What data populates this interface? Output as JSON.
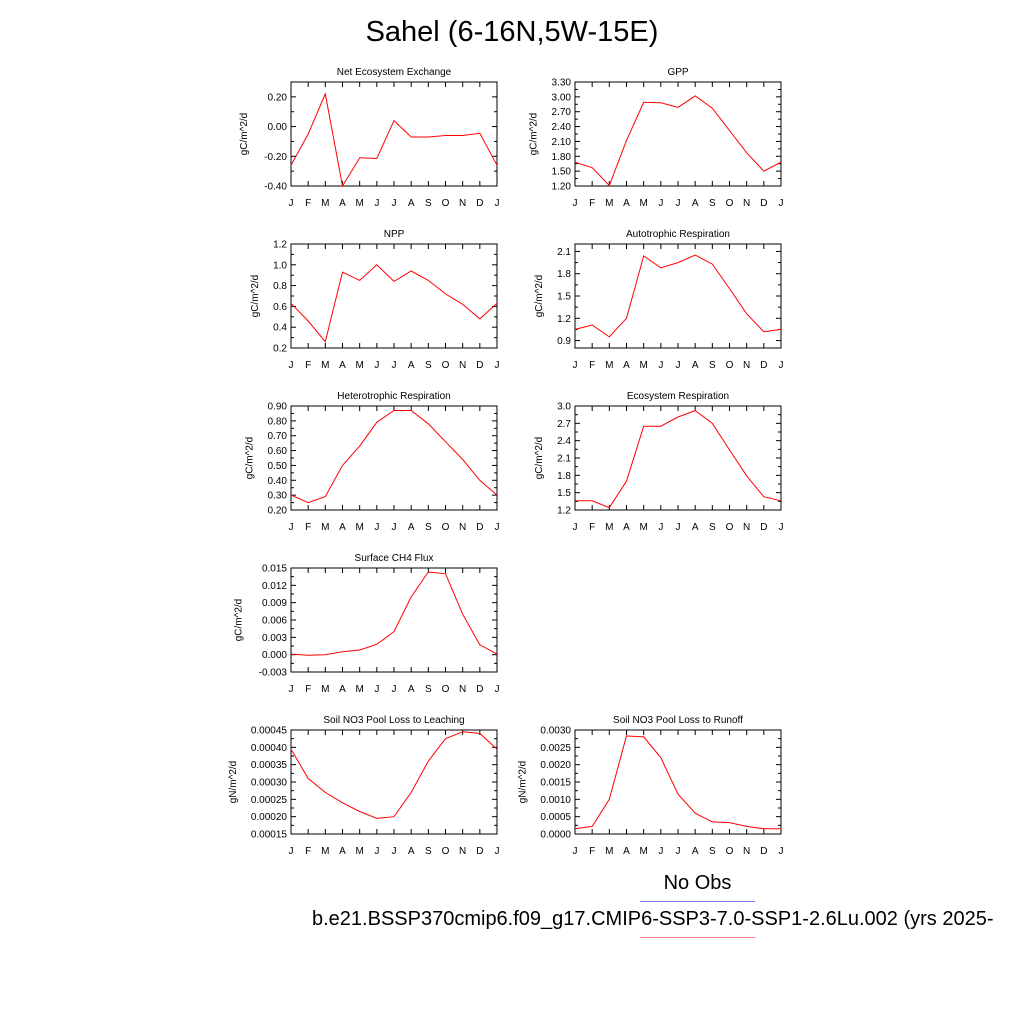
{
  "title": "Sahel (6-16N,5W-15E)",
  "legend": {
    "obs_label": "No Obs",
    "case_label": "b.e21.BSSP370cmip6.f09_g17.CMIP6-SSP3-7.0-SSP1-2.6Lu.002 (yrs 2025-",
    "obs_color": "#7f7fff",
    "case_color": "#ff7f7f"
  },
  "line_color": "#ff0000",
  "chart_data": [
    {
      "type": "line",
      "title": "Net Ecosystem Exchange",
      "ylabel": "gC/m^2/d",
      "x": [
        "J",
        "F",
        "M",
        "A",
        "M",
        "J",
        "J",
        "A",
        "S",
        "O",
        "N",
        "D",
        "J"
      ],
      "ylim": [
        -0.4,
        0.3
      ],
      "yticks": [
        -0.4,
        -0.2,
        0.0,
        0.2
      ],
      "ytick_labels": [
        "-0.40",
        "-0.20",
        "0.00",
        "0.20"
      ],
      "values": [
        -0.26,
        -0.05,
        0.22,
        -0.4,
        -0.21,
        -0.215,
        0.04,
        -0.07,
        -0.07,
        -0.06,
        -0.06,
        -0.045,
        -0.26
      ]
    },
    {
      "type": "line",
      "title": "GPP",
      "ylabel": "gC/m^2/d",
      "x": [
        "J",
        "F",
        "M",
        "A",
        "M",
        "J",
        "J",
        "A",
        "S",
        "O",
        "N",
        "D",
        "J"
      ],
      "ylim": [
        1.2,
        3.3
      ],
      "yticks": [
        1.2,
        1.5,
        1.8,
        2.1,
        2.4,
        2.7,
        3.0,
        3.3
      ],
      "ytick_labels": [
        "1.20",
        "1.50",
        "1.80",
        "2.10",
        "2.40",
        "2.70",
        "3.00",
        "3.30"
      ],
      "values": [
        1.68,
        1.57,
        1.21,
        2.12,
        2.89,
        2.88,
        2.79,
        3.02,
        2.77,
        2.32,
        1.87,
        1.5,
        1.68
      ]
    },
    {
      "type": "line",
      "title": "NPP",
      "ylabel": "gC/m^2/d",
      "x": [
        "J",
        "F",
        "M",
        "A",
        "M",
        "J",
        "J",
        "A",
        "S",
        "O",
        "N",
        "D",
        "J"
      ],
      "ylim": [
        0.2,
        1.2
      ],
      "yticks": [
        0.2,
        0.4,
        0.6,
        0.8,
        1.0,
        1.2
      ],
      "ytick_labels": [
        "0.2",
        "0.4",
        "0.6",
        "0.8",
        "1.0",
        "1.2"
      ],
      "values": [
        0.63,
        0.46,
        0.26,
        0.93,
        0.85,
        1.0,
        0.84,
        0.94,
        0.85,
        0.72,
        0.62,
        0.48,
        0.63
      ]
    },
    {
      "type": "line",
      "title": "Autotrophic Respiration",
      "ylabel": "gC/m^2/d",
      "x": [
        "J",
        "F",
        "M",
        "A",
        "M",
        "J",
        "J",
        "A",
        "S",
        "O",
        "N",
        "D",
        "J"
      ],
      "ylim": [
        0.8,
        2.2
      ],
      "yticks": [
        0.9,
        1.2,
        1.5,
        1.8,
        2.1
      ],
      "ytick_labels": [
        "0.9",
        "1.2",
        "1.5",
        "1.8",
        "2.1"
      ],
      "values": [
        1.05,
        1.11,
        0.95,
        1.2,
        2.04,
        1.88,
        1.95,
        2.05,
        1.93,
        1.6,
        1.26,
        1.02,
        1.05
      ]
    },
    {
      "type": "line",
      "title": "Heterotrophic Respiration",
      "ylabel": "gC/m^2/d",
      "x": [
        "J",
        "F",
        "M",
        "A",
        "M",
        "J",
        "J",
        "A",
        "S",
        "O",
        "N",
        "D",
        "J"
      ],
      "ylim": [
        0.2,
        0.9
      ],
      "yticks": [
        0.2,
        0.3,
        0.4,
        0.5,
        0.6,
        0.7,
        0.8,
        0.9
      ],
      "ytick_labels": [
        "0.20",
        "0.30",
        "0.40",
        "0.50",
        "0.60",
        "0.70",
        "0.80",
        "0.90"
      ],
      "values": [
        0.3,
        0.25,
        0.29,
        0.5,
        0.63,
        0.79,
        0.87,
        0.87,
        0.78,
        0.66,
        0.54,
        0.4,
        0.3
      ]
    },
    {
      "type": "line",
      "title": "Ecosystem Respiration",
      "ylabel": "gC/m^2/d",
      "x": [
        "J",
        "F",
        "M",
        "A",
        "M",
        "J",
        "J",
        "A",
        "S",
        "O",
        "N",
        "D",
        "J"
      ],
      "ylim": [
        1.2,
        3.0
      ],
      "yticks": [
        1.2,
        1.5,
        1.8,
        2.1,
        2.4,
        2.7,
        3.0
      ],
      "ytick_labels": [
        "1.2",
        "1.5",
        "1.8",
        "2.1",
        "2.4",
        "2.7",
        "3.0"
      ],
      "values": [
        1.36,
        1.36,
        1.24,
        1.7,
        2.65,
        2.65,
        2.81,
        2.92,
        2.7,
        2.24,
        1.79,
        1.43,
        1.36
      ]
    },
    {
      "type": "line",
      "title": "Surface CH4 Flux",
      "ylabel": "gC/m^2/d",
      "x": [
        "J",
        "F",
        "M",
        "A",
        "M",
        "J",
        "J",
        "A",
        "S",
        "O",
        "N",
        "D",
        "J"
      ],
      "ylim": [
        -0.003,
        0.015
      ],
      "yticks": [
        -0.003,
        0.0,
        0.003,
        0.006,
        0.009,
        0.012,
        0.015
      ],
      "ytick_labels": [
        "-0.003",
        "0.000",
        "0.003",
        "0.006",
        "0.009",
        "0.012",
        "0.015"
      ],
      "values": [
        0.0001,
        -0.0001,
        0.0,
        0.0005,
        0.0008,
        0.0018,
        0.004,
        0.01,
        0.0143,
        0.014,
        0.007,
        0.0017,
        0.0001
      ]
    },
    {
      "type": "line",
      "title": "Soil NO3 Pool Loss to Leaching",
      "ylabel": "gN/m^2/d",
      "x": [
        "J",
        "F",
        "M",
        "A",
        "M",
        "J",
        "J",
        "A",
        "S",
        "O",
        "N",
        "D",
        "J"
      ],
      "ylim": [
        0.00015,
        0.00045
      ],
      "yticks": [
        0.00015,
        0.0002,
        0.00025,
        0.0003,
        0.00035,
        0.0004,
        0.00045
      ],
      "ytick_labels": [
        "0.00015",
        "0.00020",
        "0.00025",
        "0.00030",
        "0.00035",
        "0.00040",
        "0.00045"
      ],
      "values": [
        0.000395,
        0.00031,
        0.00027,
        0.00024,
        0.000215,
        0.000195,
        0.0002,
        0.00027,
        0.00036,
        0.000425,
        0.000445,
        0.00044,
        0.000395
      ]
    },
    {
      "type": "line",
      "title": "Soil NO3 Pool Loss to Runoff",
      "ylabel": "gN/m^2/d",
      "x": [
        "J",
        "F",
        "M",
        "A",
        "M",
        "J",
        "J",
        "A",
        "S",
        "O",
        "N",
        "D",
        "J"
      ],
      "ylim": [
        0.0,
        0.003
      ],
      "yticks": [
        0.0,
        0.0005,
        0.001,
        0.0015,
        0.002,
        0.0025,
        0.003
      ],
      "ytick_labels": [
        "0.0000",
        "0.0005",
        "0.0010",
        "0.0015",
        "0.0020",
        "0.0025",
        "0.0030"
      ],
      "values": [
        0.00015,
        0.00022,
        0.001,
        0.00283,
        0.0028,
        0.0022,
        0.00115,
        0.0006,
        0.00035,
        0.00033,
        0.00022,
        0.00015,
        0.00015
      ]
    }
  ]
}
